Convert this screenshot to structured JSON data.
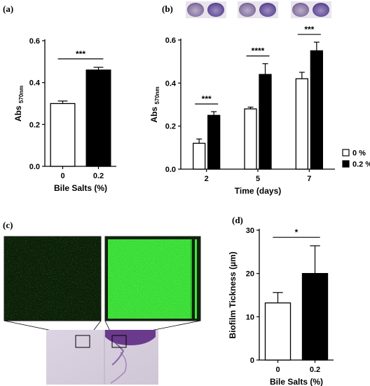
{
  "panels": {
    "a": "(a)",
    "b": "(b)",
    "c": "(c)",
    "d": "(d)"
  },
  "charts": [
    {
      "type": "bar",
      "panel": "a",
      "xlabel": "Bile Salts (%)",
      "ylabel_main": "Abs",
      "ylabel_sub": "570nm",
      "categories": [
        "0",
        "0.2"
      ],
      "values": [
        0.3,
        0.46
      ],
      "errors": [
        0.012,
        0.013
      ],
      "colors": [
        "#ffffff",
        "#000000"
      ],
      "ylim": [
        0,
        0.6
      ],
      "yticks": [
        "0.0",
        "0.2",
        "0.4",
        "0.6"
      ],
      "significance": [
        {
          "from": 0,
          "to": 1,
          "label": "***"
        }
      ]
    },
    {
      "type": "bar",
      "panel": "b",
      "xlabel": "Time (days)",
      "ylabel_main": "Abs",
      "ylabel_sub": "570nm",
      "categories": [
        "2",
        "5",
        "7"
      ],
      "series": [
        {
          "name": "0 %",
          "color": "#ffffff",
          "values": [
            0.12,
            0.28,
            0.42
          ],
          "errors": [
            0.02,
            0.008,
            0.03
          ]
        },
        {
          "name": "0.2 %",
          "color": "#000000",
          "values": [
            0.25,
            0.44,
            0.55
          ],
          "errors": [
            0.017,
            0.05,
            0.04
          ]
        }
      ],
      "ylim": [
        0,
        0.6
      ],
      "yticks": [
        "0.0",
        "0.2",
        "0.4",
        "0.6"
      ],
      "significance": [
        "***",
        "****",
        "***"
      ],
      "legend_position": "right"
    },
    {
      "type": "bar",
      "panel": "d",
      "xlabel": "Bile Salts (%)",
      "ylabel": "Biofilm Tickness (µm)",
      "categories": [
        "0",
        "0.2"
      ],
      "values": [
        13.2,
        20.0
      ],
      "errors": [
        2.4,
        6.4
      ],
      "colors": [
        "#ffffff",
        "#000000"
      ],
      "ylim": [
        0,
        30
      ],
      "yticks": [
        "0",
        "10",
        "20",
        "30"
      ],
      "significance": [
        {
          "from": 0,
          "to": 1,
          "label": "*"
        }
      ]
    }
  ],
  "colors": {
    "confocal_background": "#0c1f08",
    "confocal_signal": "#3ee83a",
    "stain": "#6a3b8c",
    "well_plate": "#d7cfdc"
  }
}
